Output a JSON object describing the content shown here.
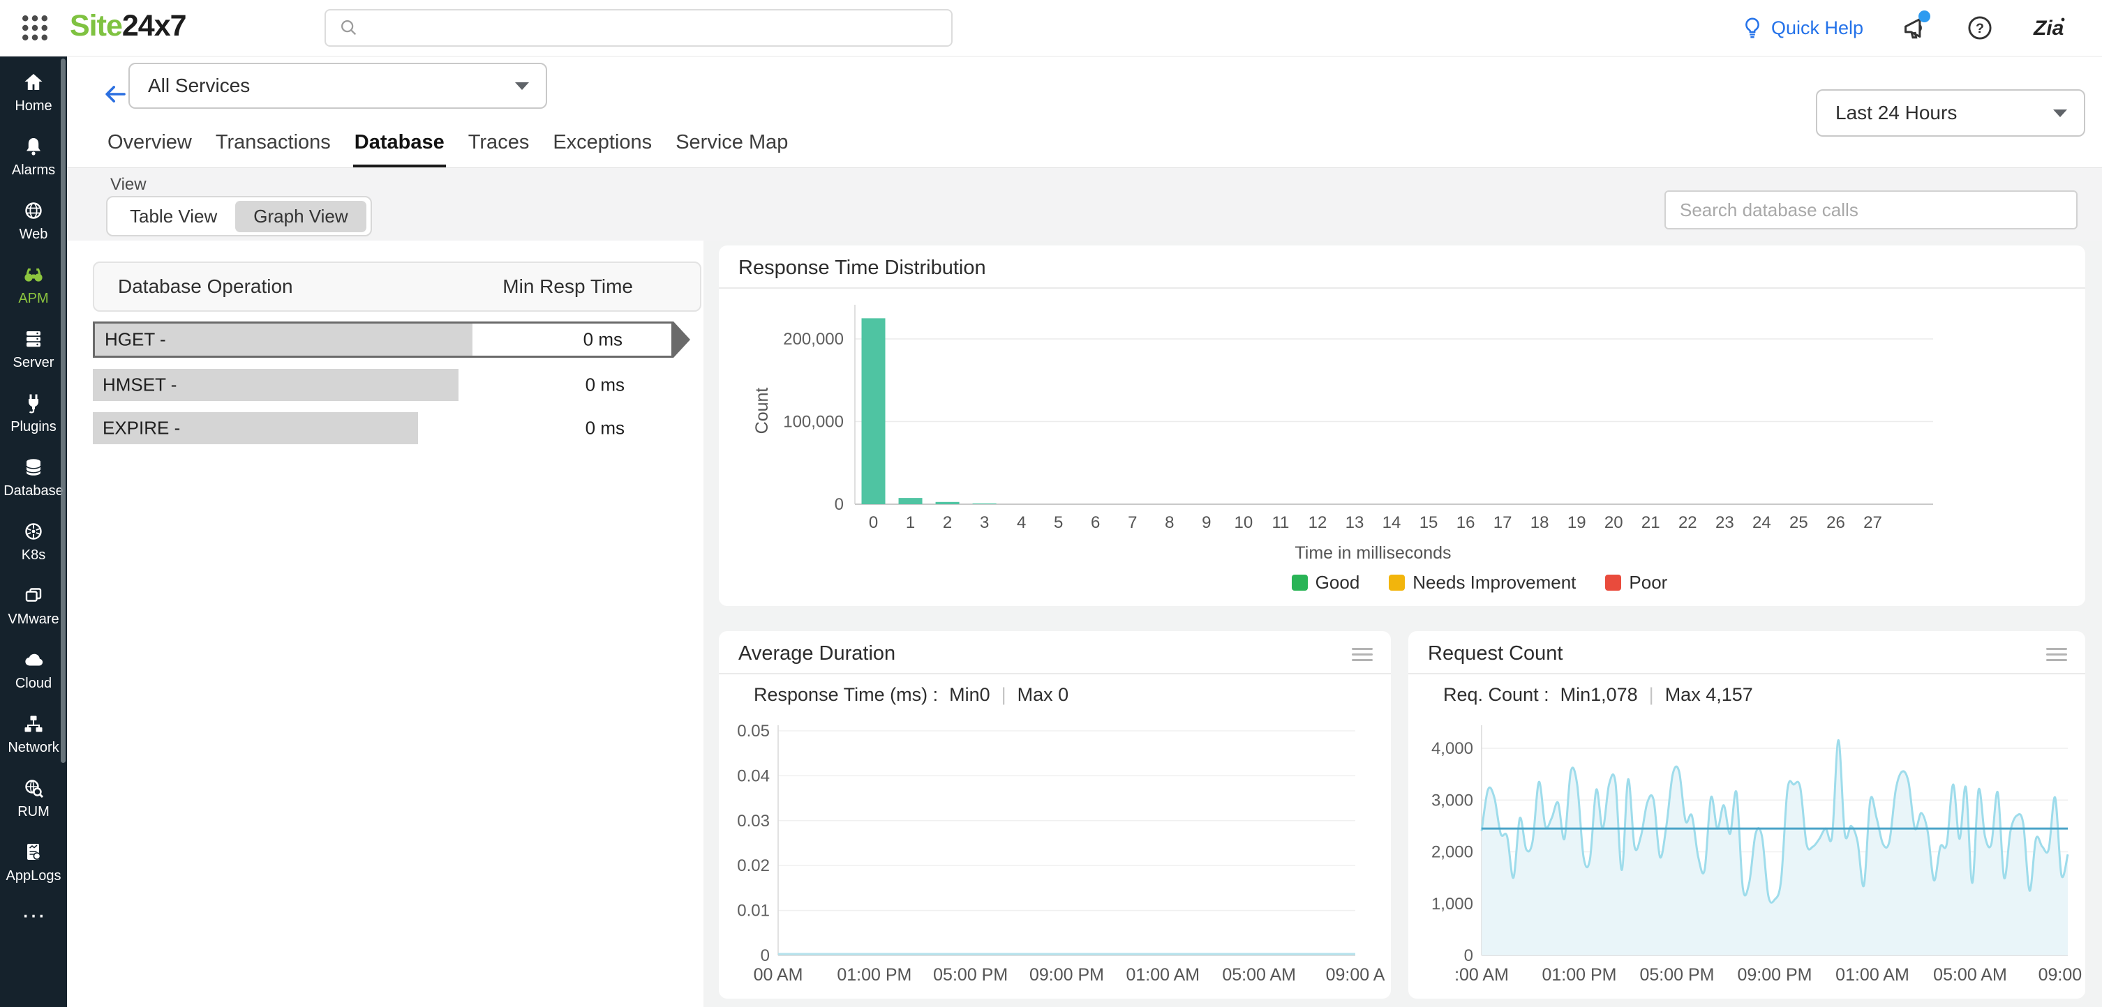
{
  "header": {
    "logo_part1": "Site",
    "logo_part2": "24x7",
    "search_placeholder": "",
    "quick_help_label": "Quick Help"
  },
  "sidebar": {
    "items": [
      {
        "id": "home",
        "label": "Home",
        "icon": "home-icon",
        "active": false
      },
      {
        "id": "alarms",
        "label": "Alarms",
        "icon": "bell-icon",
        "active": false
      },
      {
        "id": "web",
        "label": "Web",
        "icon": "globe-icon",
        "active": false
      },
      {
        "id": "apm",
        "label": "APM",
        "icon": "binoculars-icon",
        "active": true
      },
      {
        "id": "server",
        "label": "Server",
        "icon": "server-icon",
        "active": false
      },
      {
        "id": "plugins",
        "label": "Plugins",
        "icon": "plug-icon",
        "active": false
      },
      {
        "id": "database",
        "label": "Database",
        "icon": "database-icon",
        "active": false
      },
      {
        "id": "k8s",
        "label": "K8s",
        "icon": "k8s-icon",
        "active": false
      },
      {
        "id": "vmware",
        "label": "VMware",
        "icon": "vmware-icon",
        "active": false
      },
      {
        "id": "cloud",
        "label": "Cloud",
        "icon": "cloud-icon",
        "active": false
      },
      {
        "id": "network",
        "label": "Network",
        "icon": "network-icon",
        "active": false
      },
      {
        "id": "rum",
        "label": "RUM",
        "icon": "rum-icon",
        "active": false
      },
      {
        "id": "applogs",
        "label": "AppLogs",
        "icon": "applogs-icon",
        "active": false
      }
    ],
    "more_icon": "ellipsis-icon"
  },
  "subheader": {
    "service_selector_value": "All Services",
    "time_range_value": "Last 24 Hours",
    "tabs": [
      {
        "label": "Overview",
        "active": false
      },
      {
        "label": "Transactions",
        "active": false
      },
      {
        "label": "Database",
        "active": true
      },
      {
        "label": "Traces",
        "active": false
      },
      {
        "label": "Exceptions",
        "active": false
      },
      {
        "label": "Service Map",
        "active": false
      }
    ]
  },
  "view_bar": {
    "label": "View",
    "options": [
      {
        "label": "Table View",
        "selected": false
      },
      {
        "label": "Graph View",
        "selected": true
      }
    ],
    "search_placeholder": "Search database calls"
  },
  "operations_table": {
    "columns": [
      "Database Operation",
      "Min Resp Time"
    ],
    "rows": [
      {
        "name": "HGET -",
        "value": "0 ms",
        "bar_pct": 65.5,
        "selected": true
      },
      {
        "name": "HMSET -",
        "value": "0 ms",
        "bar_pct": 63.0,
        "selected": false
      },
      {
        "name": "EXPIRE -",
        "value": "0 ms",
        "bar_pct": 56.0,
        "selected": false
      }
    ]
  },
  "panels": {
    "response_time_distribution": {
      "title": "Response Time Distribution",
      "ylabel": "Count",
      "xlabel": "Time in milliseconds",
      "legend": [
        {
          "label": "Good",
          "color": "#29b456"
        },
        {
          "label": "Needs Improvement",
          "color": "#f2b50c"
        },
        {
          "label": "Poor",
          "color": "#e94b3c"
        }
      ],
      "bar_color": "#4fc4a2"
    },
    "average_duration": {
      "title": "Average Duration",
      "subtitle_label": "Response Time (ms) :",
      "min_label": "Min0",
      "separator": "|",
      "max_label": "Max 0",
      "line_color": "#b5e2ec"
    },
    "request_count": {
      "title": "Request Count",
      "subtitle_label": "Req. Count :",
      "min_label": "Min1,078",
      "separator": "|",
      "max_label": "Max 4,157",
      "line_color": "#9edceb",
      "fill_color": "#e9f5f9",
      "avg_line_color": "#4ba4c8"
    }
  },
  "chart_data": [
    {
      "type": "bar",
      "title": "Response Time Distribution",
      "xlabel": "Time in milliseconds",
      "ylabel": "Count",
      "categories": [
        0,
        1,
        2,
        3,
        4,
        5,
        6,
        7,
        8,
        9,
        10,
        11,
        12,
        13,
        14,
        15,
        16,
        17,
        18,
        19,
        20,
        21,
        22,
        23,
        24,
        25,
        26,
        27
      ],
      "values": [
        225000,
        7500,
        2700,
        900,
        0,
        0,
        0,
        0,
        0,
        0,
        0,
        0,
        0,
        0,
        0,
        0,
        0,
        0,
        0,
        0,
        0,
        0,
        0,
        0,
        0,
        0,
        0,
        0
      ],
      "yticks": [
        0,
        100000,
        200000
      ],
      "ytick_labels": [
        "0",
        "100,000",
        "200,000"
      ],
      "ylim": [
        0,
        260000
      ],
      "legend": [
        "Good",
        "Needs Improvement",
        "Poor"
      ],
      "legend_position": "bottom",
      "grid": true
    },
    {
      "type": "line",
      "title": "Average Duration",
      "subtitle": "Response Time (ms) :  Min0  |  Max 0",
      "x": [
        "00 AM",
        "01:00 PM",
        "05:00 PM",
        "09:00 PM",
        "01:00 AM",
        "05:00 AM",
        "09:00 A"
      ],
      "values": [
        0,
        0,
        0,
        0,
        0,
        0,
        0
      ],
      "yticks": [
        0,
        0.01,
        0.02,
        0.03,
        0.04,
        0.05
      ],
      "ytick_labels": [
        "0",
        "0.01",
        "0.02",
        "0.03",
        "0.04",
        "0.05"
      ],
      "ylim": [
        0,
        0.05
      ],
      "grid": true
    },
    {
      "type": "area",
      "title": "Request Count",
      "subtitle": "Req. Count :  Min1,078  |  Max 4,157",
      "x_ticks": [
        ":00 AM",
        "01:00 PM",
        "05:00 PM",
        "09:00 PM",
        "01:00 AM",
        "05:00 AM",
        "09:00 A"
      ],
      "min": 1078,
      "max": 4157,
      "average_line": 2450,
      "values": [
        2400,
        3200,
        3050,
        2350,
        2300,
        1500,
        2650,
        2050,
        2200,
        3350,
        2500,
        2650,
        2950,
        2250,
        3550,
        3300,
        1900,
        1850,
        3200,
        2450,
        3300,
        3350,
        1650,
        3400,
        2100,
        2300,
        2950,
        3000,
        1900,
        2500,
        3500,
        3550,
        2600,
        2700,
        1900,
        1650,
        3050,
        2450,
        2900,
        2350,
        3150,
        1300,
        1400,
        2350,
        2300,
        1150,
        1078,
        1450,
        3200,
        3300,
        3250,
        2150,
        2100,
        2250,
        2450,
        2300,
        4157,
        2350,
        2500,
        2200,
        1350,
        3000,
        2650,
        2150,
        2200,
        3200,
        3550,
        3350,
        2450,
        2750,
        2400,
        1450,
        2100,
        2150,
        3300,
        2250,
        3250,
        1400,
        3200,
        2300,
        2150,
        3150,
        1500,
        2400,
        2700,
        2550,
        1250,
        2250,
        2100,
        2050,
        3050,
        1550,
        1950
      ],
      "yticks": [
        0,
        1000,
        2000,
        3000,
        4000
      ],
      "ytick_labels": [
        "0",
        "1,000",
        "2,000",
        "3,000",
        "4,000"
      ],
      "ylim": [
        0,
        4400
      ],
      "grid": true
    }
  ]
}
